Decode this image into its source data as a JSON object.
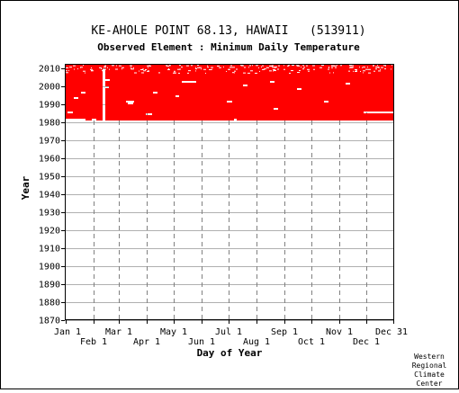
{
  "chart_data": {
    "type": "heatmap",
    "title": "KE-AHOLE POINT 68.13, HAWAII   (513911)",
    "subtitle": "Observed Element : Minimum Daily Temperature",
    "xlabel": "Day of Year",
    "ylabel": "Year",
    "ylim": [
      1870,
      2012
    ],
    "y_ticks": [
      1870,
      1880,
      1890,
      1900,
      1910,
      1920,
      1930,
      1940,
      1950,
      1960,
      1970,
      1980,
      1990,
      2000,
      2010
    ],
    "x_ticks_upper": [
      {
        "label": "Jan 1",
        "day": 1
      },
      {
        "label": "Mar 1",
        "day": 60
      },
      {
        "label": "May 1",
        "day": 121
      },
      {
        "label": "Jul 1",
        "day": 182
      },
      {
        "label": "Sep 1",
        "day": 244
      },
      {
        "label": "Nov 1",
        "day": 305
      },
      {
        "label": "Dec 31",
        "day": 365
      }
    ],
    "x_ticks_lower": [
      {
        "label": "Feb 1",
        "day": 32
      },
      {
        "label": "Apr 1",
        "day": 91
      },
      {
        "label": "Jun 1",
        "day": 152
      },
      {
        "label": "Aug 1",
        "day": 213
      },
      {
        "label": "Oct 1",
        "day": 274
      },
      {
        "label": "Dec 1",
        "day": 335
      }
    ],
    "data_color": "#ff0000",
    "grid": true,
    "record": {
      "start_year": 1981,
      "end_year": 2011
    },
    "gaps": [
      {
        "year": 1981,
        "day_start": 1,
        "day_end": 22
      },
      {
        "year": 1981,
        "day_start": 30,
        "day_end": 34
      },
      {
        "year": 1981,
        "day_start": 188,
        "day_end": 190
      },
      {
        "year": 1984,
        "day_start": 90,
        "day_end": 96
      },
      {
        "year": 1985,
        "day_start": 332,
        "day_end": 365
      },
      {
        "year": 1985,
        "day_start": 3,
        "day_end": 8
      },
      {
        "year": 1987,
        "day_start": 232,
        "day_end": 236
      },
      {
        "year": 1990,
        "day_start": 70,
        "day_end": 75
      },
      {
        "year": 1991,
        "day_start": 68,
        "day_end": 76
      },
      {
        "year": 1991,
        "day_start": 180,
        "day_end": 185
      },
      {
        "year": 1991,
        "day_start": 288,
        "day_end": 292
      },
      {
        "year": 1993,
        "day_start": 10,
        "day_end": 14
      },
      {
        "year": 1994,
        "day_start": 123,
        "day_end": 126
      },
      {
        "year": 1996,
        "day_start": 18,
        "day_end": 22
      },
      {
        "year": 1996,
        "day_start": 98,
        "day_end": 102
      },
      {
        "year": 1998,
        "day_start": 258,
        "day_end": 262
      },
      {
        "year": 1999,
        "day_start": 44,
        "day_end": 48
      },
      {
        "year": 2000,
        "day_start": 198,
        "day_end": 202
      },
      {
        "year": 2001,
        "day_start": 312,
        "day_end": 316
      },
      {
        "year": 2002,
        "day_start": 130,
        "day_end": 145
      },
      {
        "year": 2002,
        "day_start": 228,
        "day_end": 232
      },
      {
        "year": 2003,
        "day_start": 45,
        "day_end": 49
      }
    ],
    "gap_columns": [
      {
        "day_start": 42,
        "day_end": 44,
        "year_start": 1981,
        "year_end": 2009
      }
    ],
    "sparse_recent_years": [
      2007,
      2008,
      2009,
      2010,
      2011
    ]
  },
  "credit": [
    "Western",
    "Regional",
    "Climate",
    "Center"
  ]
}
